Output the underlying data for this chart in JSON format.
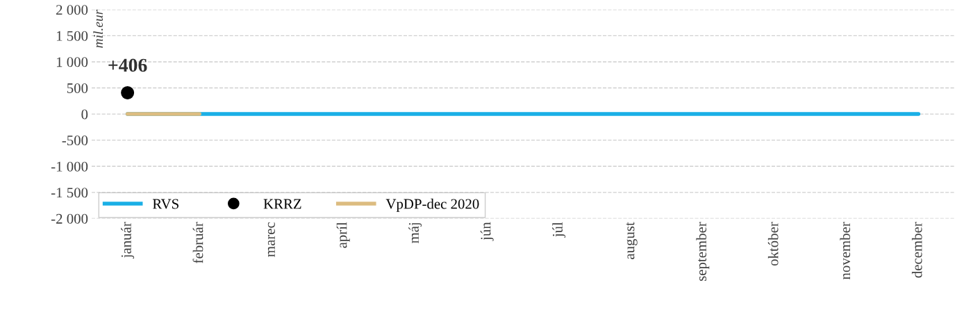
{
  "chart_data": {
    "type": "line",
    "ylabel": "mil.eur",
    "categories": [
      "január",
      "február",
      "marec",
      "apríl",
      "máj",
      "jún",
      "júl",
      "august",
      "september",
      "október",
      "november",
      "december"
    ],
    "series": [
      {
        "name": "RVS",
        "color": "#1aafe6",
        "values": [
          0,
          0,
          0,
          0,
          0,
          0,
          0,
          0,
          0,
          0,
          0,
          0
        ]
      },
      {
        "name": "KRRZ",
        "type": "scatter",
        "color": "#000000",
        "values": [
          406,
          null,
          null,
          null,
          null,
          null,
          null,
          null,
          null,
          null,
          null,
          null
        ]
      },
      {
        "name": "VpDP-dec 2020",
        "color": "#dcbc80",
        "values": [
          0,
          0,
          null,
          null,
          null,
          null,
          null,
          null,
          null,
          null,
          null,
          null
        ]
      }
    ],
    "annotations": [
      {
        "text": "+406",
        "x": "január",
        "y": 406
      }
    ],
    "ylim": [
      -2000,
      2000
    ],
    "yticks": [
      {
        "value": -2000,
        "label": "-2 000"
      },
      {
        "value": -1500,
        "label": "-1 500"
      },
      {
        "value": -1000,
        "label": "-1 000"
      },
      {
        "value": -500,
        "label": "-500"
      },
      0,
      500,
      {
        "value": 1000,
        "label": "1 000"
      },
      {
        "value": 1500,
        "label": "1 500"
      },
      {
        "value": 2000,
        "label": "2 000"
      }
    ],
    "grid": "y",
    "legend": "bottom left",
    "line_style": "solid"
  }
}
